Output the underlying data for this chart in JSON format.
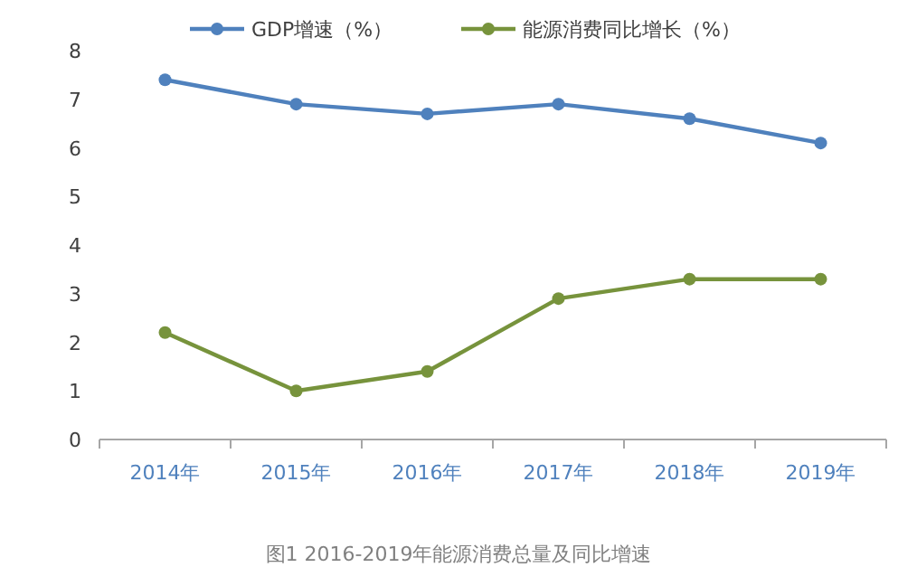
{
  "chart_data": {
    "type": "line",
    "categories": [
      "2014年",
      "2015年",
      "2016年",
      "2017年",
      "2018年",
      "2019年"
    ],
    "series": [
      {
        "name": "GDP增速（%）",
        "color": "#4f81bd",
        "values": [
          7.4,
          6.9,
          6.7,
          6.9,
          6.6,
          6.1
        ]
      },
      {
        "name": "能源消费同比增长（%）",
        "color": "#77933c",
        "values": [
          2.2,
          1.0,
          1.4,
          2.9,
          3.3,
          3.3
        ]
      }
    ],
    "ylim": [
      0,
      8
    ],
    "yticks": [
      0,
      1,
      2,
      3,
      4,
      5,
      6,
      7,
      8
    ],
    "grid": false,
    "legend": "top",
    "marker": "circle",
    "line_style": "solid",
    "annotations": [
      "图1 2016-2019年能源消费总量及同比增速"
    ]
  }
}
